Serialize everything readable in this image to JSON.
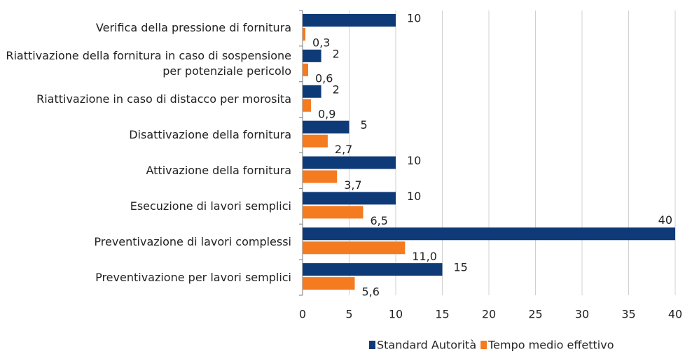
{
  "chart_data": {
    "type": "bar",
    "orientation": "horizontal",
    "categories": [
      "Verifica della pressione di fornitura",
      "Riattivazione della fornitura in caso di sospensione per potenziale pericolo",
      "Riattivazione in caso di distacco per morosita",
      "Disattivazione della fornitura",
      "Attivazione della fornitura",
      "Esecuzione di lavori semplici",
      "Preventivazione di lavori complessi",
      "Preventivazione per lavori semplici"
    ],
    "series": [
      {
        "name": "Standard Autorità",
        "color": "#0f3a78",
        "values": [
          10,
          2,
          2,
          5,
          10,
          10,
          40,
          15
        ]
      },
      {
        "name": "Tempo medio effettivo",
        "color": "#f47b20",
        "values": [
          0.3,
          0.6,
          0.9,
          2.7,
          3.7,
          6.5,
          11.0,
          5.6
        ],
        "value_labels": [
          "0,3",
          "0,6",
          "0,9",
          "2,7",
          "3,7",
          "6,5",
          "11,0",
          "5,6"
        ]
      }
    ],
    "xlim": [
      0,
      40
    ],
    "xticks": [
      0,
      5,
      10,
      15,
      20,
      25,
      30,
      35,
      40
    ],
    "grid": true,
    "legend": "bottom"
  }
}
